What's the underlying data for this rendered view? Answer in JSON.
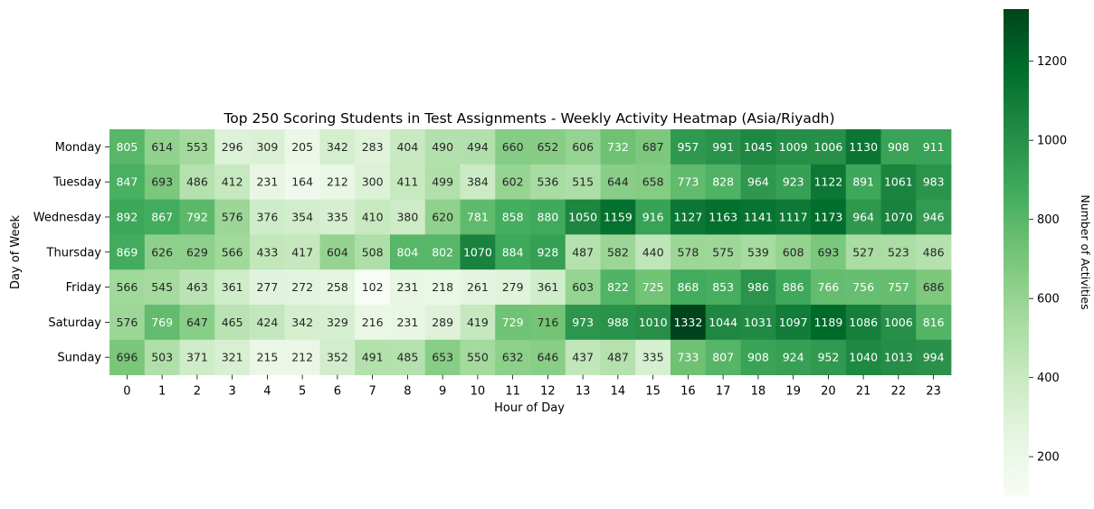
{
  "chart_data": {
    "type": "heatmap",
    "title": "Top 250 Scoring Students in Test Assignments - Weekly Activity Heatmap (Asia/Riyadh)",
    "xlabel": "Hour of Day",
    "ylabel": "Day of Week",
    "x_categories": [
      "0",
      "1",
      "2",
      "3",
      "4",
      "5",
      "6",
      "7",
      "8",
      "9",
      "10",
      "11",
      "12",
      "13",
      "14",
      "15",
      "16",
      "17",
      "18",
      "19",
      "20",
      "21",
      "22",
      "23"
    ],
    "y_categories": [
      "Monday",
      "Tuesday",
      "Wednesday",
      "Thursday",
      "Friday",
      "Saturday",
      "Sunday"
    ],
    "values": [
      [
        805,
        614,
        553,
        296,
        309,
        205,
        342,
        283,
        404,
        490,
        494,
        660,
        652,
        606,
        732,
        687,
        957,
        991,
        1045,
        1009,
        1006,
        1130,
        908,
        911
      ],
      [
        847,
        693,
        486,
        412,
        231,
        164,
        212,
        300,
        411,
        499,
        384,
        602,
        536,
        515,
        644,
        658,
        773,
        828,
        964,
        923,
        1122,
        891,
        1061,
        983
      ],
      [
        892,
        867,
        792,
        576,
        376,
        354,
        335,
        410,
        380,
        620,
        781,
        858,
        880,
        1050,
        1159,
        916,
        1127,
        1163,
        1141,
        1117,
        1173,
        964,
        1070,
        946
      ],
      [
        869,
        626,
        629,
        566,
        433,
        417,
        604,
        508,
        804,
        802,
        1070,
        884,
        928,
        487,
        582,
        440,
        578,
        575,
        539,
        608,
        693,
        527,
        523,
        486
      ],
      [
        566,
        545,
        463,
        361,
        277,
        272,
        258,
        102,
        231,
        218,
        261,
        279,
        361,
        603,
        822,
        725,
        868,
        853,
        986,
        886,
        766,
        756,
        757,
        686
      ],
      [
        576,
        769,
        647,
        465,
        424,
        342,
        329,
        216,
        231,
        289,
        419,
        729,
        716,
        973,
        988,
        1010,
        1332,
        1044,
        1031,
        1097,
        1189,
        1086,
        1006,
        816
      ],
      [
        696,
        503,
        371,
        321,
        215,
        212,
        352,
        491,
        485,
        653,
        550,
        632,
        646,
        437,
        487,
        335,
        733,
        807,
        908,
        924,
        952,
        1040,
        1013,
        994
      ]
    ],
    "colorbar": {
      "label": "Number of Activities",
      "ticks": [
        200,
        400,
        600,
        800,
        1000,
        1200
      ],
      "range": [
        102,
        1332
      ],
      "colormap": "Greens",
      "colors": [
        "#f7fcf5",
        "#e5f5e0",
        "#c7e9c0",
        "#a1d99b",
        "#74c476",
        "#41ab5d",
        "#238b45",
        "#006d2c",
        "#00441b"
      ]
    },
    "grid": false
  }
}
